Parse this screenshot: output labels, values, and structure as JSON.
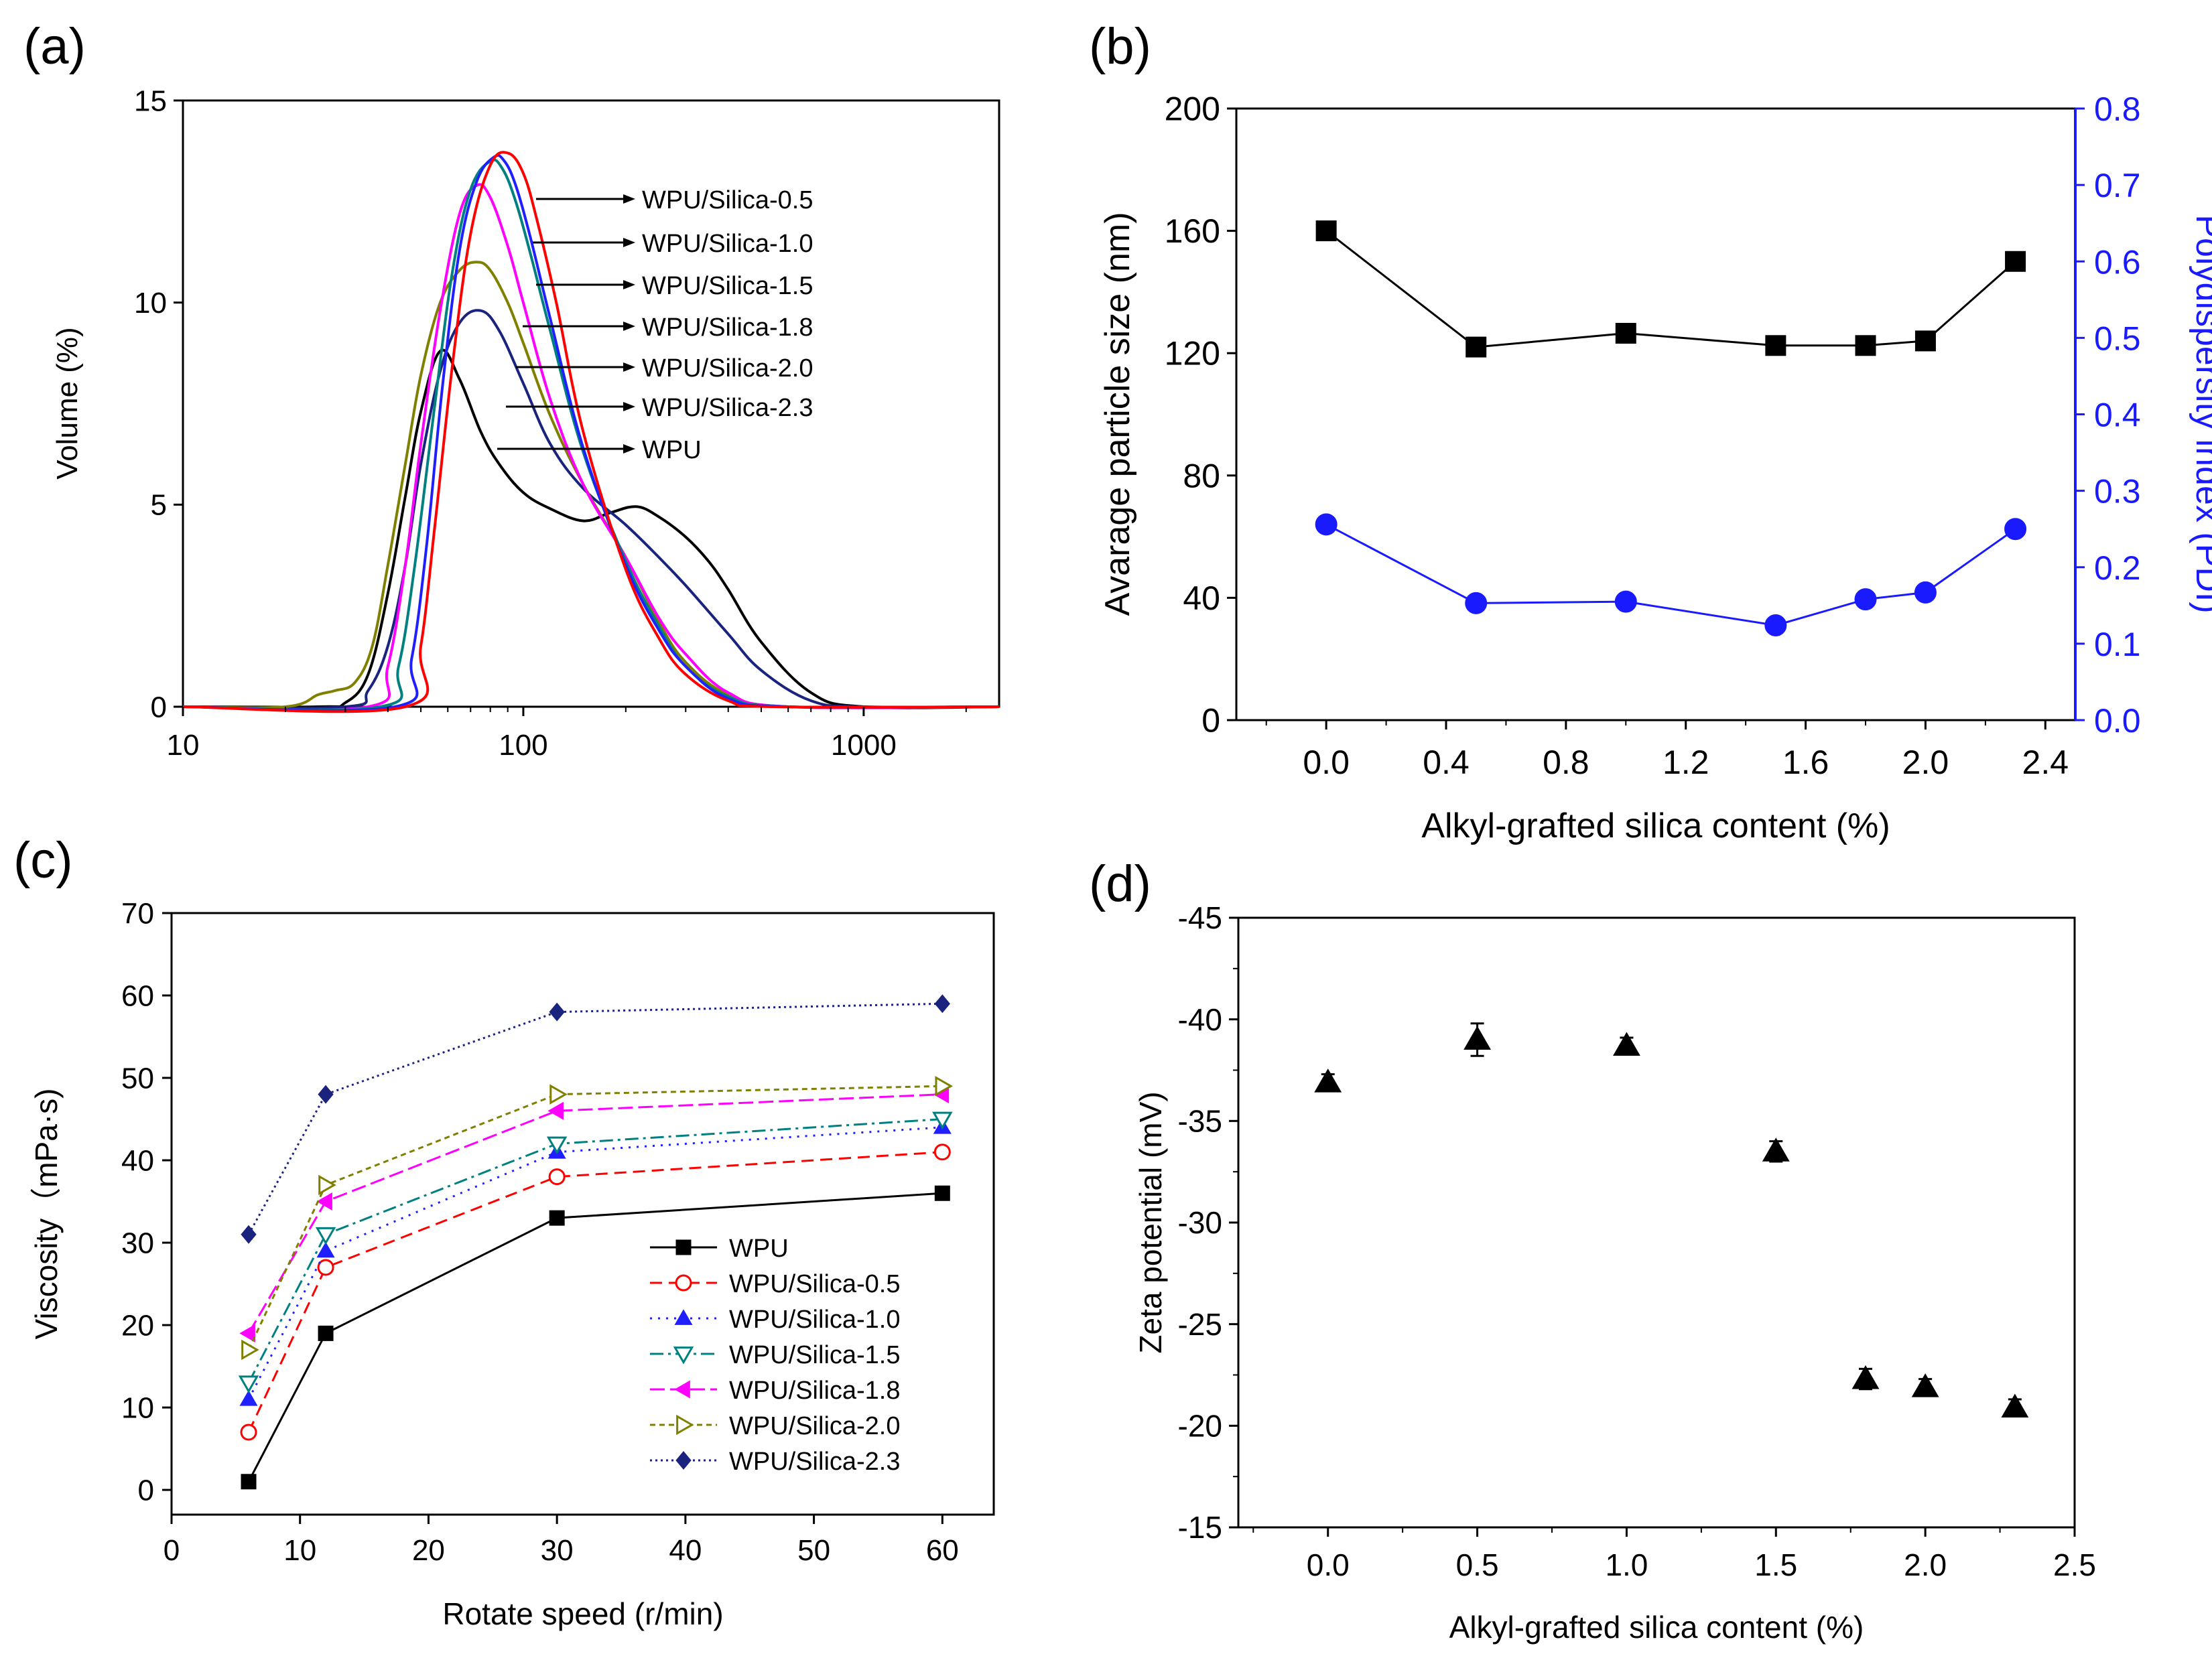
{
  "panels": {
    "a": {
      "label": "(a)"
    },
    "b": {
      "label": "(b)"
    },
    "c": {
      "label": "(c)"
    },
    "d": {
      "label": "(d)"
    }
  },
  "colors": {
    "black": "#000000",
    "red": "#ff0000",
    "blue": "#1f1fff",
    "teal": "#008080",
    "magenta": "#ff00ff",
    "olive": "#808000",
    "navy": "#1a237e",
    "pdi_blue": "#1a1aff"
  },
  "chart_data": [
    {
      "id": "a",
      "type": "line",
      "xscale": "log",
      "xlim": [
        10,
        2500
      ],
      "ylim": [
        0,
        15
      ],
      "xticks": [
        10,
        100,
        1000
      ],
      "xtick_labels": [
        "10",
        "100",
        "1000"
      ],
      "yticks": [
        0,
        5,
        10,
        15
      ],
      "ytick_labels": [
        "0",
        "5",
        "10",
        "15"
      ],
      "xlabel": "",
      "ylabel": "Volume (%)",
      "annotations": [
        "WPU/Silica-0.5",
        "WPU/Silica-1.0",
        "WPU/Silica-1.5",
        "WPU/Silica-1.8",
        "WPU/Silica-2.0",
        "WPU/Silica-2.3",
        "WPU"
      ],
      "series": [
        {
          "name": "WPU",
          "color": "#000000",
          "x": [
            10,
            25,
            30,
            35,
            40,
            45,
            50,
            57,
            65,
            75,
            85,
            100,
            120,
            150,
            180,
            215,
            250,
            300,
            350,
            400,
            500,
            700,
            1000,
            2500
          ],
          "y": [
            0,
            0,
            0.1,
            0.8,
            2.8,
            5.2,
            7.3,
            8.8,
            8.1,
            6.8,
            6.0,
            5.3,
            4.9,
            4.6,
            4.8,
            4.95,
            4.7,
            4.2,
            3.6,
            2.9,
            1.6,
            0.35,
            0,
            0
          ]
        },
        {
          "name": "WPU/Silica-2.3",
          "color": "#1a237e",
          "x": [
            10,
            30,
            35,
            40,
            45,
            50,
            57,
            65,
            75,
            85,
            100,
            120,
            150,
            200,
            250,
            300,
            400,
            500,
            700,
            1000,
            2500
          ],
          "y": [
            0,
            0,
            0.4,
            1.5,
            3.5,
            6.0,
            8.3,
            9.5,
            9.8,
            9.3,
            8.0,
            6.5,
            5.4,
            4.5,
            3.7,
            3.0,
            1.8,
            0.9,
            0.15,
            0,
            0
          ]
        },
        {
          "name": "WPU/Silica-2.0",
          "color": "#808000",
          "x": [
            10,
            20,
            25,
            28,
            32,
            36,
            40,
            45,
            50,
            57,
            65,
            73,
            80,
            90,
            100,
            120,
            150,
            200,
            250,
            300,
            400,
            600,
            2500
          ],
          "y": [
            0,
            0,
            0.3,
            0.4,
            0.6,
            1.5,
            3.5,
            6.0,
            8.2,
            10.0,
            10.8,
            11.0,
            10.8,
            10.0,
            9.0,
            7.2,
            5.5,
            3.7,
            2.1,
            1.1,
            0.3,
            0,
            0
          ]
        },
        {
          "name": "WPU/Silica-1.8",
          "color": "#ff00ff",
          "x": [
            10,
            35,
            40,
            45,
            50,
            57,
            65,
            73,
            80,
            90,
            100,
            120,
            150,
            200,
            250,
            300,
            400,
            600,
            2500
          ],
          "y": [
            0,
            0,
            1.0,
            3.5,
            6.5,
            9.8,
            12.2,
            12.9,
            12.6,
            11.4,
            10.0,
            7.6,
            5.5,
            3.7,
            2.2,
            1.3,
            0.35,
            0,
            0
          ]
        },
        {
          "name": "WPU/Silica-1.5",
          "color": "#008080",
          "x": [
            10,
            38,
            43,
            48,
            55,
            62,
            70,
            80,
            87,
            95,
            105,
            120,
            150,
            200,
            250,
            300,
            400,
            600,
            2500
          ],
          "y": [
            0,
            0,
            1.0,
            3.5,
            7.5,
            10.8,
            12.8,
            13.5,
            13.3,
            12.5,
            11.2,
            9.3,
            6.3,
            3.6,
            2.0,
            1.0,
            0.25,
            0,
            0
          ]
        },
        {
          "name": "WPU/Silica-1.0",
          "color": "#1f1fff",
          "x": [
            10,
            42,
            47,
            52,
            58,
            65,
            73,
            82,
            88,
            95,
            105,
            120,
            150,
            200,
            250,
            300,
            400,
            600,
            2500
          ],
          "y": [
            0,
            0,
            1.2,
            4.0,
            8.0,
            11.3,
            13.0,
            13.6,
            13.5,
            12.9,
            11.6,
            9.6,
            6.4,
            3.5,
            1.9,
            1.0,
            0.2,
            0,
            0
          ]
        },
        {
          "name": "WPU/Silica-0.5",
          "color": "#ff0000",
          "x": [
            10,
            45,
            50,
            55,
            62,
            70,
            80,
            90,
            100,
            110,
            125,
            150,
            200,
            250,
            300,
            400,
            550,
            2500
          ],
          "y": [
            0,
            0,
            1.5,
            4.5,
            8.5,
            11.7,
            13.4,
            13.7,
            13.2,
            12.0,
            10.0,
            6.8,
            3.4,
            1.7,
            0.8,
            0.15,
            0,
            0
          ]
        }
      ]
    },
    {
      "id": "b",
      "type": "line",
      "xlim": [
        -0.3,
        2.5
      ],
      "ylim": [
        0,
        200
      ],
      "y2lim": [
        0,
        0.8
      ],
      "xticks": [
        0.0,
        0.4,
        0.8,
        1.2,
        1.6,
        2.0,
        2.4
      ],
      "xtick_labels": [
        "0.0",
        "0.4",
        "0.8",
        "1.2",
        "1.6",
        "2.0",
        "2.4"
      ],
      "yticks": [
        0,
        40,
        80,
        120,
        160,
        200
      ],
      "ytick_labels": [
        "0",
        "40",
        "80",
        "120",
        "160",
        "200"
      ],
      "y2ticks": [
        0,
        0.1,
        0.2,
        0.3,
        0.4,
        0.5,
        0.6,
        0.7,
        0.8
      ],
      "y2tick_labels": [
        "0.0",
        "0.1",
        "0.2",
        "0.3",
        "0.4",
        "0.5",
        "0.6",
        "0.7",
        "0.8"
      ],
      "xlabel": "Alkyl-grafted silica content (%)",
      "ylabel": "Avarage particle size (nm)",
      "y2label": "Polydispersity index (PDI)",
      "series": [
        {
          "name": "Particle size",
          "axis": "left",
          "marker": "square",
          "color": "#000000",
          "x": [
            0.0,
            0.5,
            1.0,
            1.5,
            1.8,
            2.0,
            2.3
          ],
          "y": [
            160,
            122,
            126.5,
            122.5,
            122.5,
            124,
            150
          ]
        },
        {
          "name": "PDI",
          "axis": "right",
          "marker": "circle",
          "color": "#1a1aff",
          "x": [
            0.0,
            0.5,
            1.0,
            1.5,
            1.8,
            2.0,
            2.3
          ],
          "y": [
            0.256,
            0.153,
            0.155,
            0.124,
            0.158,
            0.167,
            0.25
          ]
        }
      ]
    },
    {
      "id": "c",
      "type": "line",
      "xlim": [
        0,
        64
      ],
      "ylim": [
        -3,
        70
      ],
      "xticks": [
        0,
        10,
        20,
        30,
        40,
        50,
        60
      ],
      "xtick_labels": [
        "0",
        "10",
        "20",
        "30",
        "40",
        "50",
        "60"
      ],
      "yticks": [
        0,
        10,
        20,
        30,
        40,
        50,
        60,
        70
      ],
      "ytick_labels": [
        "0",
        "10",
        "20",
        "30",
        "40",
        "50",
        "60",
        "70"
      ],
      "xlabel": "Rotate speed (r/min)",
      "ylabel": "Viscosity（mPa·s)",
      "legend_position": "lower-right",
      "series": [
        {
          "name": "WPU",
          "marker": "square",
          "dash": "",
          "color": "#000000",
          "x": [
            6,
            12,
            30,
            60
          ],
          "y": [
            1,
            19,
            33,
            36
          ]
        },
        {
          "name": "WPU/Silica-0.5",
          "marker": "circle-open",
          "dash": "18 10",
          "color": "#ff0000",
          "x": [
            6,
            12,
            30,
            60
          ],
          "y": [
            7,
            27,
            38,
            41
          ]
        },
        {
          "name": "WPU/Silica-1.0",
          "marker": "triangle-up",
          "dash": "3 9",
          "color": "#1f1fff",
          "x": [
            6,
            12,
            30,
            60
          ],
          "y": [
            11,
            29,
            41,
            44
          ]
        },
        {
          "name": "WPU/Silica-1.5",
          "marker": "triangle-down-open",
          "dash": "20 7 4 7",
          "color": "#008080",
          "x": [
            6,
            12,
            30,
            60
          ],
          "y": [
            13,
            31,
            42,
            45
          ]
        },
        {
          "name": "WPU/Silica-1.8",
          "marker": "triangle-left",
          "dash": "22 8",
          "color": "#ff00ff",
          "x": [
            6,
            12,
            30,
            60
          ],
          "y": [
            19,
            35,
            46,
            48
          ]
        },
        {
          "name": "WPU/Silica-2.0",
          "marker": "triangle-right-open",
          "dash": "8 6",
          "color": "#808000",
          "x": [
            6,
            12,
            30,
            60
          ],
          "y": [
            17,
            37,
            48,
            49
          ]
        },
        {
          "name": "WPU/Silica-2.3",
          "marker": "diamond",
          "dash": "3 5",
          "color": "#1a237e",
          "x": [
            6,
            12,
            30,
            60
          ],
          "y": [
            31,
            48,
            58,
            59
          ]
        }
      ]
    },
    {
      "id": "d",
      "type": "scatter",
      "xlim": [
        -0.3,
        2.5
      ],
      "ylim": [
        -15,
        -45
      ],
      "xticks": [
        0.0,
        0.5,
        1.0,
        1.5,
        2.0,
        2.5
      ],
      "xtick_labels": [
        "0.0",
        "0.5",
        "1.0",
        "1.5",
        "2.0",
        "2.5"
      ],
      "yticks": [
        -15,
        -20,
        -25,
        -30,
        -35,
        -40,
        -45
      ],
      "ytick_labels": [
        "-15",
        "-20",
        "-25",
        "-30",
        "-35",
        "-40",
        "-45"
      ],
      "xlabel": "Alkyl-grafted silica content (%)",
      "ylabel": "Zeta potential (mV)",
      "series": [
        {
          "name": "Zeta potential",
          "marker": "triangle-up",
          "color": "#000000",
          "x": [
            0.0,
            0.5,
            1.0,
            1.5,
            1.8,
            2.0,
            2.3
          ],
          "y": [
            -36.9,
            -39.0,
            -38.7,
            -33.5,
            -22.3,
            -21.9,
            -20.9
          ],
          "err": [
            0.4,
            0.8,
            0.4,
            0.5,
            0.5,
            0.4,
            0.4
          ]
        }
      ]
    }
  ]
}
